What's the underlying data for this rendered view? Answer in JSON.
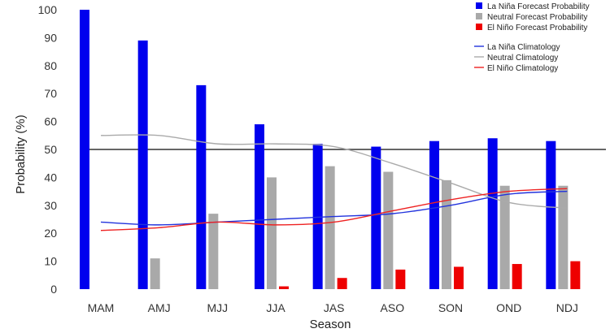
{
  "chart_data": {
    "type": "bar",
    "xlabel": "Season",
    "ylabel": "Probability (%)",
    "ylim": [
      0,
      100
    ],
    "yticks": [
      0,
      10,
      20,
      30,
      40,
      50,
      60,
      70,
      80,
      90,
      100
    ],
    "reference_line": 50,
    "categories": [
      "MAM",
      "AMJ",
      "MJJ",
      "JJA",
      "JAS",
      "ASO",
      "SON",
      "OND",
      "NDJ"
    ],
    "series": [
      {
        "name": "La Niña Forecast Probability",
        "color": "#0000ee",
        "values": [
          100,
          89,
          73,
          59,
          52,
          51,
          53,
          54,
          53
        ]
      },
      {
        "name": "Neutral Forecast Probability",
        "color": "#a9a9a9",
        "values": [
          0,
          11,
          27,
          40,
          44,
          42,
          39,
          37,
          37
        ]
      },
      {
        "name": "El Niño Forecast Probability",
        "color": "#ee0000",
        "values": [
          0,
          0,
          0,
          1,
          4,
          7,
          8,
          9,
          10
        ]
      }
    ],
    "lines": [
      {
        "name": "La Niña Climatology",
        "color": "#2233dd",
        "values": [
          24,
          23,
          24,
          25,
          26,
          27,
          30,
          34,
          35
        ]
      },
      {
        "name": "Neutral Climatology",
        "color": "#aaaaaa",
        "values": [
          55,
          55,
          52,
          52,
          51,
          45,
          38,
          31,
          29
        ]
      },
      {
        "name": "El Niño Climatology",
        "color": "#ee2222",
        "values": [
          21,
          22,
          24,
          23,
          24,
          28,
          32,
          35,
          36
        ]
      }
    ],
    "legend_placement": "top-right"
  }
}
